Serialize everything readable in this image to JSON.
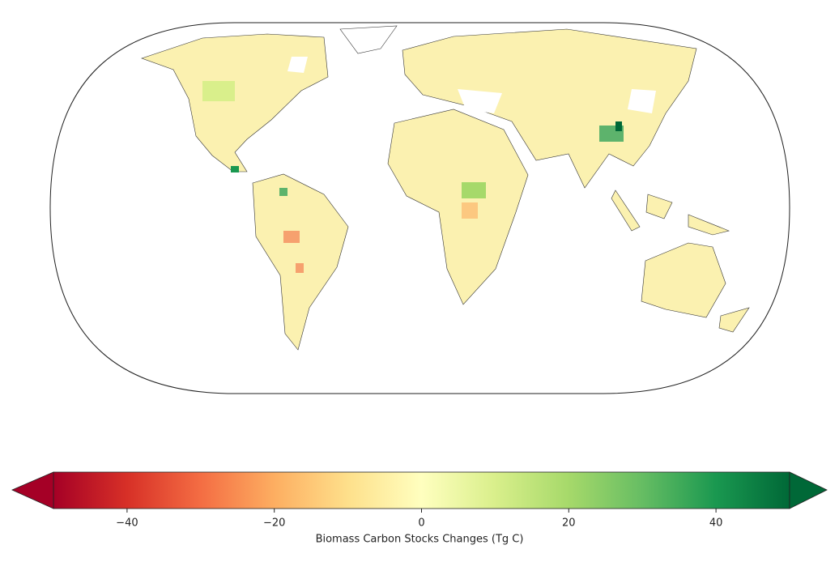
{
  "chart_data": {
    "type": "colorbar-map",
    "colorbar_label": "Biomass Carbon Stocks Changes (Tg C)",
    "clim": [
      -50,
      50
    ],
    "ticks": [
      {
        "value": -40,
        "label": "−40"
      },
      {
        "value": -20,
        "label": "−20"
      },
      0,
      20,
      40
    ],
    "colormap": [
      "#a50026",
      "#d73027",
      "#f46d43",
      "#fdae61",
      "#fee08b",
      "#ffffbf",
      "#d9ef8b",
      "#a6d96a",
      "#66bd63",
      "#1a9850",
      "#006837"
    ]
  }
}
